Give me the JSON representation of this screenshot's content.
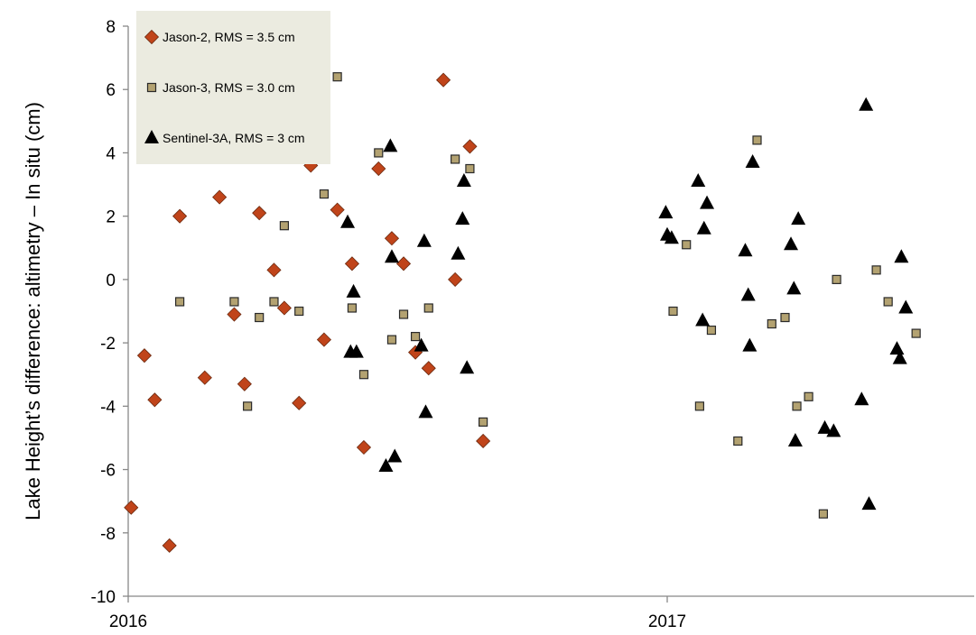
{
  "chart_data": {
    "type": "scatter",
    "title": "",
    "xlabel": "",
    "ylabel": "Lake Height’s difference: altimetry – In situ (cm)",
    "x_ticks": [
      "2016",
      "2017"
    ],
    "xlim": [
      "2016-01-01",
      "2017-06-27"
    ],
    "ylim": [
      -10,
      8
    ],
    "y_ticks": [
      -10,
      -8,
      -6,
      -4,
      -2,
      0,
      2,
      4,
      6,
      8
    ],
    "grid": false,
    "legend_position": "top-left",
    "series": [
      {
        "name": "Jason-2, RMS = 3.5 cm",
        "marker": "diamond",
        "color": "#c0441a",
        "points": [
          {
            "x": "2016-01-03",
            "y": -7.2
          },
          {
            "x": "2016-01-12",
            "y": -2.4
          },
          {
            "x": "2016-01-19",
            "y": -3.8
          },
          {
            "x": "2016-01-29",
            "y": -8.4
          },
          {
            "x": "2016-02-05",
            "y": 2.0
          },
          {
            "x": "2016-02-22",
            "y": -3.1
          },
          {
            "x": "2016-03-03",
            "y": 2.6
          },
          {
            "x": "2016-03-13",
            "y": -1.1
          },
          {
            "x": "2016-03-20",
            "y": -3.3
          },
          {
            "x": "2016-03-30",
            "y": 2.1
          },
          {
            "x": "2016-04-09",
            "y": 0.3
          },
          {
            "x": "2016-04-16",
            "y": -0.9
          },
          {
            "x": "2016-04-26",
            "y": -3.9
          },
          {
            "x": "2016-05-04",
            "y": 3.6
          },
          {
            "x": "2016-05-13",
            "y": -1.9
          },
          {
            "x": "2016-05-22",
            "y": 2.2
          },
          {
            "x": "2016-06-01",
            "y": 0.5
          },
          {
            "x": "2016-06-09",
            "y": -5.3
          },
          {
            "x": "2016-06-19",
            "y": 3.5
          },
          {
            "x": "2016-06-28",
            "y": 1.3
          },
          {
            "x": "2016-07-06",
            "y": 0.5
          },
          {
            "x": "2016-07-14",
            "y": -2.3
          },
          {
            "x": "2016-07-23",
            "y": -2.8
          },
          {
            "x": "2016-08-02",
            "y": 6.3
          },
          {
            "x": "2016-08-10",
            "y": 0.0
          },
          {
            "x": "2016-08-20",
            "y": 4.2
          },
          {
            "x": "2016-08-29",
            "y": -5.1
          }
        ]
      },
      {
        "name": "Jason-3, RMS = 3.0 cm",
        "marker": "square",
        "color": "#b3a271",
        "points": [
          {
            "x": "2016-02-05",
            "y": -0.7
          },
          {
            "x": "2016-03-13",
            "y": -0.7
          },
          {
            "x": "2016-03-22",
            "y": -4.0
          },
          {
            "x": "2016-03-30",
            "y": -1.2
          },
          {
            "x": "2016-04-09",
            "y": -0.7
          },
          {
            "x": "2016-04-16",
            "y": 1.7
          },
          {
            "x": "2016-04-26",
            "y": -1.0
          },
          {
            "x": "2016-05-13",
            "y": 2.7
          },
          {
            "x": "2016-05-22",
            "y": 6.4
          },
          {
            "x": "2016-06-01",
            "y": -0.9
          },
          {
            "x": "2016-06-09",
            "y": -3.0
          },
          {
            "x": "2016-06-19",
            "y": 4.0
          },
          {
            "x": "2016-06-28",
            "y": -1.9
          },
          {
            "x": "2016-07-06",
            "y": -1.1
          },
          {
            "x": "2016-07-14",
            "y": -1.8
          },
          {
            "x": "2016-07-23",
            "y": -0.9
          },
          {
            "x": "2016-08-10",
            "y": 3.8
          },
          {
            "x": "2016-08-20",
            "y": 3.5
          },
          {
            "x": "2016-08-29",
            "y": -4.5
          },
          {
            "x": "2017-01-05",
            "y": -1.0
          },
          {
            "x": "2017-01-14",
            "y": 1.1
          },
          {
            "x": "2017-01-23",
            "y": -4.0
          },
          {
            "x": "2017-01-31",
            "y": -1.6
          },
          {
            "x": "2017-02-18",
            "y": -5.1
          },
          {
            "x": "2017-03-03",
            "y": 4.4
          },
          {
            "x": "2017-03-13",
            "y": -1.4
          },
          {
            "x": "2017-03-22",
            "y": -1.2
          },
          {
            "x": "2017-03-30",
            "y": -4.0
          },
          {
            "x": "2017-04-07",
            "y": -3.7
          },
          {
            "x": "2017-04-17",
            "y": -7.4
          },
          {
            "x": "2017-04-26",
            "y": 0.0
          },
          {
            "x": "2017-05-23",
            "y": 0.3
          },
          {
            "x": "2017-05-31",
            "y": -0.7
          },
          {
            "x": "2017-06-19",
            "y": -1.7
          }
        ]
      },
      {
        "name": "Sentinel-3A, RMS = 3 cm",
        "marker": "triangle",
        "color": "#000000",
        "points": [
          {
            "x": "2016-05-29",
            "y": 1.8
          },
          {
            "x": "2016-05-31",
            "y": -2.3
          },
          {
            "x": "2016-06-02",
            "y": -0.4
          },
          {
            "x": "2016-06-04",
            "y": -2.3
          },
          {
            "x": "2016-06-24",
            "y": -5.9
          },
          {
            "x": "2016-06-27",
            "y": 4.2
          },
          {
            "x": "2016-06-28",
            "y": 0.7
          },
          {
            "x": "2016-06-30",
            "y": -5.6
          },
          {
            "x": "2016-07-18",
            "y": -2.1
          },
          {
            "x": "2016-07-20",
            "y": 1.2
          },
          {
            "x": "2016-07-21",
            "y": -4.2
          },
          {
            "x": "2016-08-12",
            "y": 0.8
          },
          {
            "x": "2016-08-15",
            "y": 1.9
          },
          {
            "x": "2016-08-16",
            "y": 3.1
          },
          {
            "x": "2016-08-18",
            "y": -2.8
          },
          {
            "x": "2016-12-31",
            "y": 2.1
          },
          {
            "x": "2017-01-01",
            "y": 1.4
          },
          {
            "x": "2017-01-04",
            "y": 1.3
          },
          {
            "x": "2017-01-22",
            "y": 3.1
          },
          {
            "x": "2017-01-25",
            "y": -1.3
          },
          {
            "x": "2017-01-26",
            "y": 1.6
          },
          {
            "x": "2017-01-28",
            "y": 2.4
          },
          {
            "x": "2017-02-23",
            "y": 0.9
          },
          {
            "x": "2017-02-25",
            "y": -0.5
          },
          {
            "x": "2017-02-26",
            "y": -2.1
          },
          {
            "x": "2017-02-28",
            "y": 3.7
          },
          {
            "x": "2017-03-26",
            "y": 1.1
          },
          {
            "x": "2017-03-28",
            "y": -0.3
          },
          {
            "x": "2017-03-29",
            "y": -5.1
          },
          {
            "x": "2017-03-31",
            "y": 1.9
          },
          {
            "x": "2017-04-18",
            "y": -4.7
          },
          {
            "x": "2017-04-24",
            "y": -4.8
          },
          {
            "x": "2017-05-13",
            "y": -3.8
          },
          {
            "x": "2017-05-16",
            "y": 5.5
          },
          {
            "x": "2017-05-18",
            "y": -7.1
          },
          {
            "x": "2017-06-06",
            "y": -2.2
          },
          {
            "x": "2017-06-08",
            "y": -2.5
          },
          {
            "x": "2017-06-09",
            "y": 0.7
          },
          {
            "x": "2017-06-12",
            "y": -0.9
          }
        ]
      }
    ]
  }
}
